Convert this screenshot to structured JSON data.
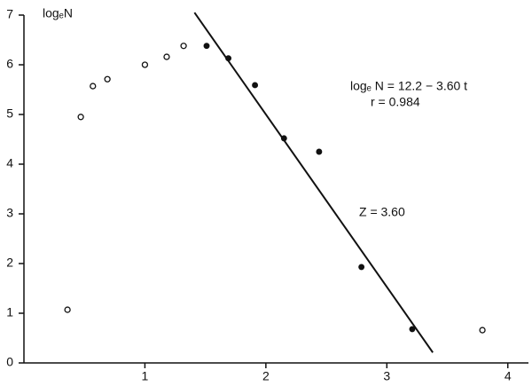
{
  "chart_data": {
    "type": "scatter",
    "y_label": "logₑN",
    "annotations": [
      "logₑ N = 12.2 − 3.60 t",
      "r = 0.984",
      "Z = 3.60"
    ],
    "xlim": [
      0,
      4.2
    ],
    "ylim": [
      0,
      7
    ],
    "xticks": [
      1,
      2,
      3,
      4
    ],
    "yticks": [
      0,
      1,
      2,
      3,
      4,
      5,
      6,
      7
    ],
    "grid": false,
    "series": [
      {
        "color": "#111",
        "filled": false,
        "x": [
          0.36,
          0.47,
          0.57,
          0.69,
          1.0,
          1.18,
          1.32,
          3.79
        ],
        "values": [
          1.07,
          4.95,
          5.57,
          5.71,
          6.0,
          6.16,
          6.38,
          0.66
        ]
      },
      {
        "color": "#111",
        "filled": true,
        "x": [
          1.51,
          1.69,
          1.91,
          2.15,
          2.44,
          2.79,
          3.21
        ],
        "values": [
          6.38,
          6.13,
          5.59,
          4.52,
          4.25,
          1.93,
          0.68
        ]
      }
    ],
    "fit_line": {
      "color": "#111",
      "x": [
        1.41,
        3.38
      ],
      "values": [
        7.05,
        0.21
      ]
    }
  }
}
